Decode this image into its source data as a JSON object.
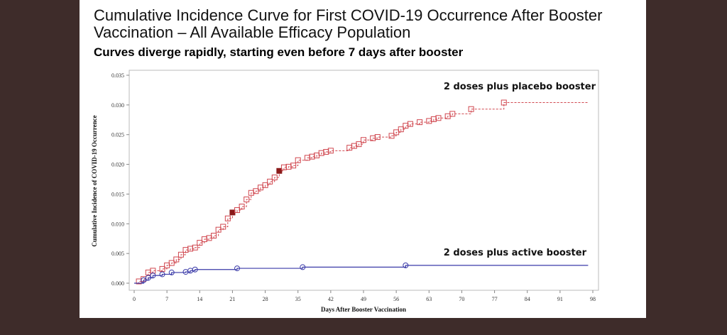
{
  "slide": {
    "title": "Cumulative Incidence Curve for First COVID-19 Occurrence After Booster Vaccination – All Available Efficacy Population",
    "subtitle": "Curves diverge rapidly, starting even before 7 days after booster"
  },
  "chart_data": {
    "type": "line",
    "xlabel": "Days After Booster Vaccination",
    "ylabel": "Cumulative Incidence of COVID-19 Occurrence",
    "xlim": [
      0,
      98
    ],
    "ylim": [
      0,
      0.035
    ],
    "xticks": [
      "0",
      "7",
      "14",
      "21",
      "28",
      "35",
      "42",
      "49",
      "56",
      "63",
      "70",
      "77",
      "84",
      "91",
      "98"
    ],
    "yticks": [
      "0.000",
      "0.005",
      "0.010",
      "0.015",
      "0.020",
      "0.025",
      "0.030",
      "0.035"
    ],
    "grid": false,
    "series": [
      {
        "name": "2 doses plus placebo booster",
        "color": "#d0474f",
        "style": "dashed-step",
        "marker": "square",
        "x": [
          0,
          1,
          2,
          3,
          4,
          6,
          7,
          8,
          9,
          10,
          11,
          12,
          13,
          14,
          15,
          16,
          17,
          18,
          19,
          20,
          21,
          22,
          23,
          24,
          25,
          26,
          27,
          28,
          29,
          30,
          31,
          32,
          33,
          34,
          35,
          37,
          38,
          39,
          40,
          41,
          42,
          46,
          47,
          48,
          49,
          51,
          52,
          55,
          56,
          57,
          58,
          59,
          61,
          63,
          64,
          65,
          67,
          68,
          72,
          79,
          97
        ],
        "y": [
          0,
          0.0003,
          0.0007,
          0.0018,
          0.0021,
          0.0024,
          0.003,
          0.0034,
          0.004,
          0.0048,
          0.0056,
          0.0058,
          0.006,
          0.0068,
          0.0074,
          0.0076,
          0.008,
          0.009,
          0.0095,
          0.0109,
          0.0119,
          0.0123,
          0.0129,
          0.0141,
          0.0152,
          0.0155,
          0.0161,
          0.0165,
          0.0171,
          0.0178,
          0.0189,
          0.0195,
          0.0196,
          0.0198,
          0.0207,
          0.0211,
          0.0213,
          0.0215,
          0.0219,
          0.0221,
          0.0223,
          0.0228,
          0.0231,
          0.0234,
          0.0241,
          0.0244,
          0.0246,
          0.0248,
          0.0254,
          0.0259,
          0.0265,
          0.0268,
          0.0271,
          0.0273,
          0.0276,
          0.0278,
          0.0281,
          0.0285,
          0.0293,
          0.0304,
          0.0304
        ],
        "highlighted_x": [
          21,
          31
        ]
      },
      {
        "name": "2 doses plus active booster",
        "color": "#3a3aa8",
        "style": "solid-step",
        "marker": "circle",
        "x": [
          0,
          2,
          3,
          4,
          6,
          8,
          11,
          12,
          13,
          22,
          36,
          58,
          97
        ],
        "y": [
          0,
          0.0005,
          0.0009,
          0.0013,
          0.0015,
          0.0018,
          0.0019,
          0.0021,
          0.0023,
          0.0025,
          0.0027,
          0.003,
          0.003
        ]
      }
    ]
  }
}
